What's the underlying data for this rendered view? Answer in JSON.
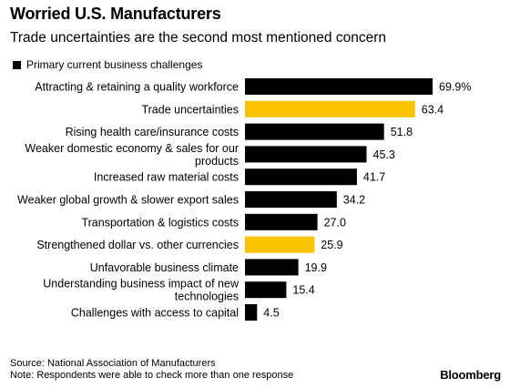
{
  "title": "Worried U.S. Manufacturers",
  "subtitle": "Trade uncertainties are the second most mentioned concern",
  "source_line": "Source: National Association of Manufacturers",
  "note_line": "Note: Respondents were able to check more than one response",
  "logo": "Bloomberg",
  "colors": {
    "default_bar": "#000000",
    "highlight_bar": "#fcc300"
  },
  "chart_data": {
    "type": "bar",
    "orientation": "horizontal",
    "legend": [
      "Primary current business challenges"
    ],
    "categories": [
      [
        "Attracting & retaining a quality workforce"
      ],
      [
        "Trade uncertainties"
      ],
      [
        "Rising health care/insurance costs"
      ],
      [
        "Weaker domestic economy & sales for our",
        "products"
      ],
      [
        "Increased raw material costs"
      ],
      [
        "Weaker global growth & slower export sales"
      ],
      [
        "Transportation & logistics costs"
      ],
      [
        "Strengthened dollar vs. other currencies"
      ],
      [
        "Unfavorable business climate"
      ],
      [
        "Understanding business impact of new",
        "technologies"
      ],
      [
        "Challenges with access to capital"
      ]
    ],
    "values": [
      69.9,
      63.4,
      51.8,
      45.3,
      41.7,
      34.2,
      27.0,
      25.9,
      19.9,
      15.4,
      4.5
    ],
    "value_labels": [
      "69.9%",
      "63.4",
      "51.8",
      "45.3",
      "41.7",
      "34.2",
      "27.0",
      "25.9",
      "19.9",
      "15.4",
      "4.5"
    ],
    "highlighted": [
      false,
      true,
      false,
      false,
      false,
      false,
      false,
      true,
      false,
      false,
      false
    ],
    "xlim": [
      0,
      69.9
    ]
  }
}
